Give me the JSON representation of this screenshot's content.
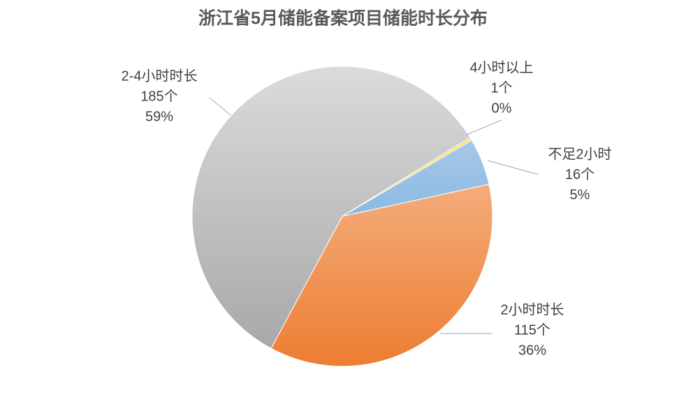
{
  "chart_data": {
    "type": "pie",
    "title": "浙江省5月储能备案项目储能时长分布",
    "categories": [
      "不足2小时",
      "2小时时长",
      "2-4小时时长",
      "4小时以上"
    ],
    "values": [
      16,
      115,
      185,
      1
    ],
    "value_labels": [
      "16个",
      "115个",
      "185个",
      "1个"
    ],
    "percent_labels": [
      "5%",
      "36%",
      "59%",
      "0%"
    ],
    "colors": [
      "#5b9bd5",
      "#ed7d31",
      "#a5a5a5",
      "#ffc000"
    ]
  }
}
